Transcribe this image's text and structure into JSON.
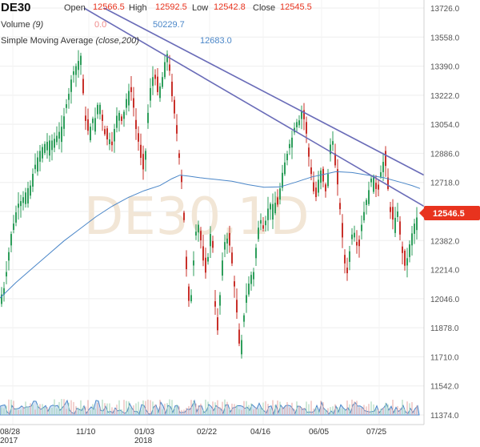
{
  "header": {
    "symbol": "DE30",
    "open_label": "Open",
    "open_value": "12566.5",
    "high_label": "High",
    "high_value": "12592.5",
    "low_label": "Low",
    "low_value": "12542.8",
    "close_label": "Close",
    "close_value": "12545.5",
    "volume_label": "Volume",
    "volume_param": "(9)",
    "volume_value_a": "0.0",
    "volume_value_b": "50229.7",
    "sma_label": "Simple Moving Average",
    "sma_param": "(close,200)",
    "sma_value": "12683.0"
  },
  "watermark": "DE30,1D",
  "price_tag": {
    "value": "12546.5",
    "color": "#e8331e"
  },
  "colors": {
    "up": "#2e9e5b",
    "down": "#c8302a",
    "sma": "#4a86c8",
    "trendline": "#6a6cb8",
    "volume_fill": "#9ec3ea",
    "volume_line": "#4a86c8"
  },
  "chart_data": {
    "type": "candlestick",
    "ylim": [
      11374,
      13726
    ],
    "y_ticks": [
      "13726.0",
      "13558.0",
      "13390.0",
      "13222.0",
      "13054.0",
      "12886.0",
      "12718.0",
      "12550.0",
      "12382.0",
      "12214.0",
      "12046.0",
      "11878.0",
      "11710.0",
      "11542.0",
      "11374.0"
    ],
    "x_ticks": [
      {
        "label": "08/28",
        "sub": "2017"
      },
      {
        "label": "11/10",
        "sub": ""
      },
      {
        "label": "01/03",
        "sub": "2018"
      },
      {
        "label": "02/22",
        "sub": ""
      },
      {
        "label": "04/16",
        "sub": ""
      },
      {
        "label": "06/05",
        "sub": ""
      },
      {
        "label": "07/25",
        "sub": ""
      }
    ],
    "close_path": [
      [
        0,
        12050
      ],
      [
        3,
        12080
      ],
      [
        6,
        12120
      ],
      [
        10,
        12280
      ],
      [
        14,
        12420
      ],
      [
        18,
        12500
      ],
      [
        22,
        12590
      ],
      [
        26,
        12610
      ],
      [
        30,
        12640
      ],
      [
        34,
        12680
      ],
      [
        38,
        12700
      ],
      [
        42,
        12790
      ],
      [
        46,
        12850
      ],
      [
        50,
        12900
      ],
      [
        54,
        12930
      ],
      [
        58,
        12950
      ],
      [
        62,
        12960
      ],
      [
        66,
        12960
      ],
      [
        70,
        12980
      ],
      [
        74,
        13010
      ],
      [
        78,
        13050
      ],
      [
        82,
        13150
      ],
      [
        86,
        13230
      ],
      [
        90,
        13340
      ],
      [
        94,
        13380
      ],
      [
        98,
        13420
      ],
      [
        101,
        13450
      ],
      [
        103,
        13300
      ],
      [
        106,
        13100
      ],
      [
        109,
        13020
      ],
      [
        112,
        13010
      ],
      [
        115,
        13100
      ],
      [
        118,
        13060
      ],
      [
        121,
        13150
      ],
      [
        124,
        13200
      ],
      [
        127,
        13100
      ],
      [
        130,
        13020
      ],
      [
        133,
        12950
      ],
      [
        136,
        13000
      ],
      [
        139,
        12900
      ],
      [
        142,
        13000
      ],
      [
        145,
        13080
      ],
      [
        148,
        13150
      ],
      [
        151,
        13060
      ],
      [
        154,
        13100
      ],
      [
        157,
        13180
      ],
      [
        160,
        13240
      ],
      [
        163,
        13260
      ],
      [
        166,
        13200
      ],
      [
        169,
        13050
      ],
      [
        172,
        12980
      ],
      [
        175,
        12900
      ],
      [
        178,
        12780
      ],
      [
        181,
        12820
      ],
      [
        184,
        13060
      ],
      [
        187,
        13240
      ],
      [
        190,
        13310
      ],
      [
        193,
        13360
      ],
      [
        196,
        13230
      ],
      [
        199,
        13260
      ],
      [
        202,
        13300
      ],
      [
        205,
        13380
      ],
      [
        208,
        13480
      ],
      [
        211,
        13420
      ],
      [
        214,
        13250
      ],
      [
        217,
        13150
      ],
      [
        220,
        13050
      ],
      [
        223,
        12900
      ],
      [
        226,
        12780
      ],
      [
        229,
        12600
      ],
      [
        232,
        12300
      ],
      [
        235,
        12050
      ],
      [
        238,
        12000
      ],
      [
        241,
        12200
      ],
      [
        244,
        12400
      ],
      [
        247,
        12500
      ],
      [
        250,
        12420
      ],
      [
        253,
        12310
      ],
      [
        256,
        12180
      ],
      [
        259,
        12230
      ],
      [
        262,
        12400
      ],
      [
        265,
        12460
      ],
      [
        268,
        12100
      ],
      [
        271,
        11800
      ],
      [
        274,
        11990
      ],
      [
        277,
        12220
      ],
      [
        280,
        12360
      ],
      [
        283,
        12400
      ],
      [
        286,
        12380
      ],
      [
        289,
        12300
      ],
      [
        292,
        12150
      ],
      [
        295,
        12050
      ],
      [
        298,
        11800
      ],
      [
        301,
        11760
      ],
      [
        304,
        11900
      ],
      [
        307,
        12050
      ],
      [
        310,
        12100
      ],
      [
        313,
        12200
      ],
      [
        316,
        12150
      ],
      [
        319,
        12300
      ],
      [
        322,
        12420
      ],
      [
        325,
        12530
      ],
      [
        328,
        12440
      ],
      [
        331,
        12470
      ],
      [
        334,
        12550
      ],
      [
        337,
        12600
      ],
      [
        340,
        12580
      ],
      [
        343,
        12620
      ],
      [
        346,
        12560
      ],
      [
        349,
        12650
      ],
      [
        352,
        12750
      ],
      [
        355,
        12820
      ],
      [
        358,
        12860
      ],
      [
        361,
        12930
      ],
      [
        364,
        12960
      ],
      [
        367,
        13010
      ],
      [
        370,
        13080
      ],
      [
        373,
        13040
      ],
      [
        376,
        13150
      ],
      [
        379,
        13100
      ],
      [
        382,
        13050
      ],
      [
        385,
        12900
      ],
      [
        388,
        12800
      ],
      [
        391,
        12700
      ],
      [
        394,
        12600
      ],
      [
        397,
        12700
      ],
      [
        400,
        12800
      ],
      [
        403,
        12760
      ],
      [
        406,
        12650
      ],
      [
        409,
        12700
      ],
      [
        412,
        12900
      ],
      [
        415,
        13010
      ],
      [
        418,
        12850
      ],
      [
        421,
        12750
      ],
      [
        424,
        12620
      ],
      [
        427,
        12450
      ],
      [
        430,
        12300
      ],
      [
        433,
        12150
      ],
      [
        436,
        12280
      ],
      [
        439,
        12400
      ],
      [
        442,
        12450
      ],
      [
        445,
        12380
      ],
      [
        448,
        12300
      ],
      [
        451,
        12450
      ],
      [
        454,
        12520
      ],
      [
        457,
        12600
      ],
      [
        460,
        12650
      ],
      [
        463,
        12720
      ],
      [
        466,
        12780
      ],
      [
        469,
        12700
      ],
      [
        472,
        12640
      ],
      [
        475,
        12750
      ],
      [
        478,
        12830
      ],
      [
        481,
        12850
      ],
      [
        484,
        12740
      ],
      [
        487,
        12560
      ],
      [
        490,
        12520
      ],
      [
        493,
        12470
      ],
      [
        496,
        12600
      ],
      [
        499,
        12450
      ],
      [
        502,
        12350
      ],
      [
        505,
        12230
      ],
      [
        508,
        12250
      ],
      [
        511,
        12340
      ],
      [
        514,
        12400
      ],
      [
        517,
        12470
      ],
      [
        520,
        12500
      ],
      [
        523,
        12546
      ]
    ],
    "sma_200_path": [
      [
        0,
        12050
      ],
      [
        20,
        12140
      ],
      [
        40,
        12220
      ],
      [
        60,
        12300
      ],
      [
        80,
        12380
      ],
      [
        100,
        12450
      ],
      [
        120,
        12520
      ],
      [
        140,
        12580
      ],
      [
        160,
        12630
      ],
      [
        180,
        12670
      ],
      [
        200,
        12700
      ],
      [
        215,
        12740
      ],
      [
        225,
        12760
      ],
      [
        235,
        12755
      ],
      [
        250,
        12745
      ],
      [
        270,
        12735
      ],
      [
        290,
        12725
      ],
      [
        310,
        12705
      ],
      [
        330,
        12690
      ],
      [
        350,
        12692
      ],
      [
        370,
        12720
      ],
      [
        390,
        12750
      ],
      [
        410,
        12770
      ],
      [
        420,
        12780
      ],
      [
        440,
        12775
      ],
      [
        460,
        12760
      ],
      [
        480,
        12745
      ],
      [
        500,
        12720
      ],
      [
        515,
        12700
      ],
      [
        525,
        12683
      ]
    ],
    "trendlines": [
      {
        "from": [
          130,
          13726
        ],
        "to": [
          530,
          12760
        ]
      },
      {
        "from": [
          105,
          13726
        ],
        "to": [
          530,
          12580
        ]
      }
    ],
    "volume": {
      "range": [
        0,
        60000
      ],
      "last": 50229.7
    }
  }
}
